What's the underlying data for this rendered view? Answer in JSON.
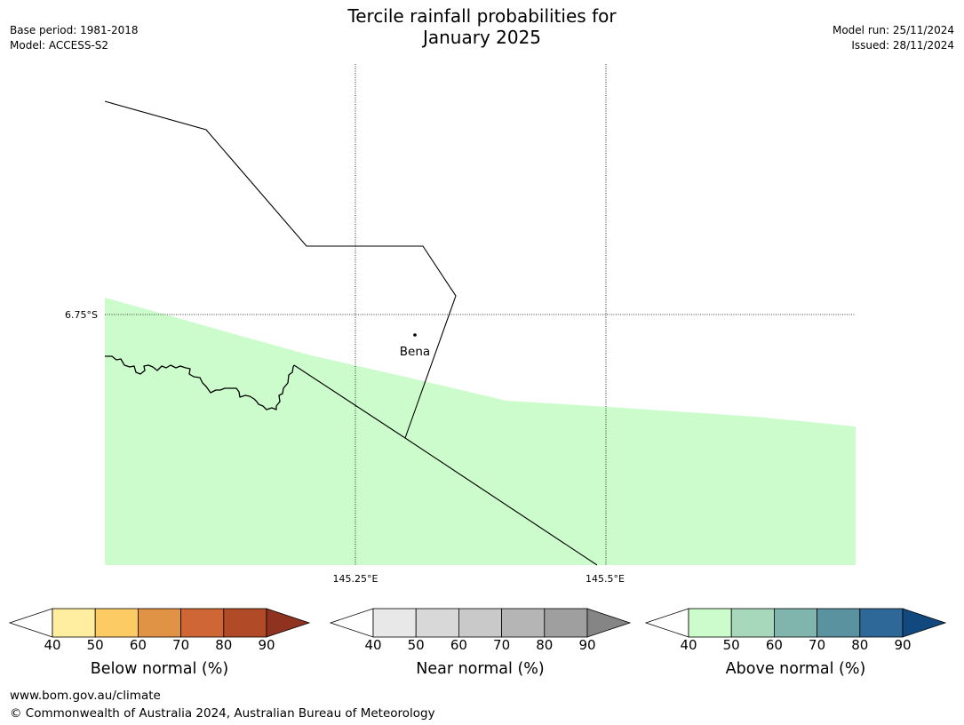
{
  "header": {
    "title_line1": "Tercile rainfall probabilities for",
    "title_line2": "January 2025",
    "base_period": "Base period: 1981-2018",
    "model": "Model: ACCESS-S2",
    "model_run": "Model run: 25/11/2024",
    "issued": "Issued: 28/11/2024"
  },
  "map": {
    "lat_label": "6.75°S",
    "lon_labels": [
      "145.25°E",
      "145.5°E"
    ],
    "town": "Bena",
    "shading_color": "#ccfccc"
  },
  "legends": [
    {
      "title": "Below normal (%)",
      "ticks": [
        "40",
        "50",
        "60",
        "70",
        "80",
        "90"
      ],
      "colors": [
        "#ffeea0",
        "#fdcb63",
        "#e09344",
        "#ce6635",
        "#b04a27",
        "#8f3320"
      ]
    },
    {
      "title": "Near normal (%)",
      "ticks": [
        "40",
        "50",
        "60",
        "70",
        "80",
        "90"
      ],
      "colors": [
        "#e8e8e8",
        "#d8d8d8",
        "#c9c9c9",
        "#b5b5b5",
        "#9f9f9f",
        "#858585"
      ]
    },
    {
      "title": "Above normal (%)",
      "ticks": [
        "40",
        "50",
        "60",
        "70",
        "80",
        "90"
      ],
      "colors": [
        "#ccfccc",
        "#a8d8bc",
        "#7fb5ad",
        "#5a92a0",
        "#2e6898",
        "#11487e"
      ]
    }
  ],
  "footer": {
    "website": "www.bom.gov.au/climate",
    "copyright": "© Commonwealth of Australia 2024, Australian Bureau of Meteorology"
  }
}
